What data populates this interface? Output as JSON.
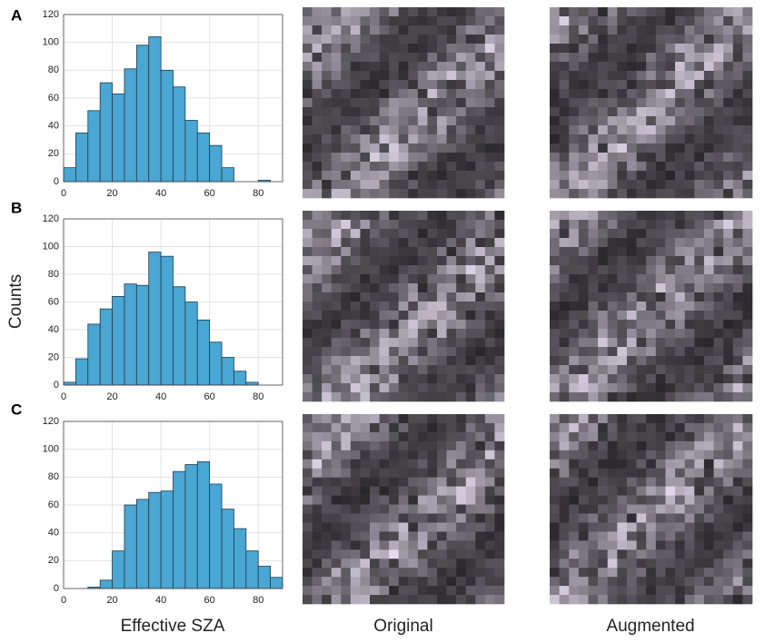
{
  "panel_labels": [
    "A",
    "B",
    "C"
  ],
  "y_label": "Counts",
  "x_label": "Effective SZA",
  "column_titles": [
    "Original",
    "Augmented"
  ],
  "chart_data": [
    {
      "type": "histogram",
      "color": "#4aa6d2",
      "grid": true,
      "bins": [
        0,
        5,
        10,
        15,
        20,
        25,
        30,
        35,
        40,
        45,
        50,
        55,
        60,
        65,
        70,
        75,
        80,
        85,
        90
      ],
      "counts": [
        10,
        35,
        51,
        71,
        63,
        81,
        98,
        104,
        80,
        68,
        44,
        35,
        26,
        10,
        0,
        0,
        1,
        0
      ],
      "xlim": [
        0,
        90
      ],
      "ylim": [
        0,
        120
      ],
      "xticks": [
        0,
        20,
        40,
        60,
        80
      ],
      "yticks": [
        0,
        20,
        40,
        60,
        80,
        100,
        120
      ]
    },
    {
      "type": "histogram",
      "color": "#4aa6d2",
      "grid": true,
      "bins": [
        0,
        5,
        10,
        15,
        20,
        25,
        30,
        35,
        40,
        45,
        50,
        55,
        60,
        65,
        70,
        75,
        80,
        85,
        90
      ],
      "counts": [
        2,
        19,
        44,
        55,
        64,
        73,
        72,
        96,
        93,
        71,
        60,
        47,
        31,
        20,
        10,
        2,
        0,
        0
      ],
      "xlim": [
        0,
        90
      ],
      "ylim": [
        0,
        120
      ],
      "xticks": [
        0,
        20,
        40,
        60,
        80
      ],
      "yticks": [
        0,
        20,
        40,
        60,
        80,
        100,
        120
      ]
    },
    {
      "type": "histogram",
      "color": "#4aa6d2",
      "grid": true,
      "bins": [
        0,
        5,
        10,
        15,
        20,
        25,
        30,
        35,
        40,
        45,
        50,
        55,
        60,
        65,
        70,
        75,
        80,
        85,
        90
      ],
      "counts": [
        0,
        0,
        1,
        6,
        27,
        60,
        64,
        69,
        70,
        84,
        89,
        91,
        75,
        57,
        43,
        27,
        16,
        8
      ],
      "xlim": [
        0,
        90
      ],
      "ylim": [
        0,
        120
      ],
      "xticks": [
        0,
        20,
        40,
        60,
        80
      ],
      "yticks": [
        0,
        20,
        40,
        60,
        80,
        100,
        120
      ]
    }
  ]
}
